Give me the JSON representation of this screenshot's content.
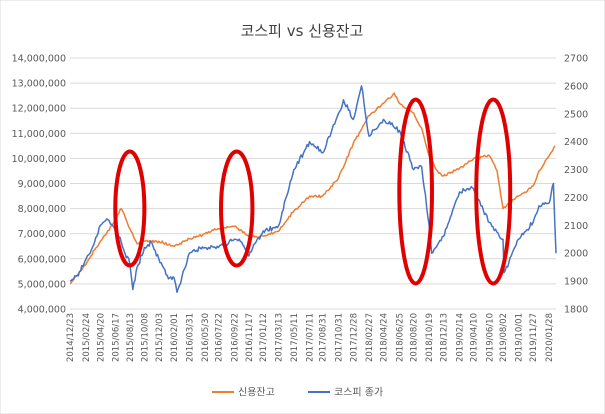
{
  "chart_data": {
    "type": "line",
    "title": "코스피 vs 신용잔고",
    "grid": true,
    "legend_position": "bottom",
    "colors": {
      "credit": "#ED7D31",
      "kospi": "#4472C4",
      "highlight": "#E00000",
      "grid": "#D9D9D9"
    },
    "y_left": {
      "range": [
        4000000,
        14000000
      ],
      "ticks": [
        "4,000,000",
        "5,000,000",
        "6,000,000",
        "7,000,000",
        "8,000,000",
        "9,000,000",
        "10,000,000",
        "11,000,000",
        "12,000,000",
        "13,000,000",
        "14,000,000"
      ]
    },
    "y_right": {
      "range": [
        1800,
        2700
      ],
      "ticks": [
        "1800",
        "1900",
        "2000",
        "2100",
        "2200",
        "2300",
        "2400",
        "2500",
        "2600",
        "2700"
      ]
    },
    "x_tick_labels": [
      "2014/12/23",
      "2015/02/24",
      "2015/04/20",
      "2015/06/17",
      "2015/08/13",
      "2015/10/08",
      "2015/12/03",
      "2016/02/01",
      "2016/03/31",
      "2016/05/30",
      "2016/07/22",
      "2016/09/22",
      "2016/11/17",
      "2017/01/12",
      "2017/03/13",
      "2017/05/11",
      "2017/07/11",
      "2017/08/31",
      "2017/10/31",
      "2017/12/28",
      "2018/02/27",
      "2018/04/24",
      "2018/06/25",
      "2018/08/20",
      "2018/10/19",
      "2018/12/13",
      "2019/02/14",
      "2019/04/10",
      "2019/06/10",
      "2019/08/02",
      "2019/10/01",
      "2019/11/27",
      "2020/01/28"
    ],
    "series": [
      {
        "name": "신용잔고",
        "axis": "left",
        "x": [
          "2014/12/23",
          "2015/02/24",
          "2015/04/20",
          "2015/06/17",
          "2015/07/10",
          "2015/08/13",
          "2015/09/10",
          "2015/10/08",
          "2015/12/03",
          "2016/02/01",
          "2016/03/31",
          "2016/05/30",
          "2016/07/22",
          "2016/09/22",
          "2016/11/17",
          "2017/01/12",
          "2017/03/13",
          "2017/05/11",
          "2017/07/11",
          "2017/08/31",
          "2017/10/31",
          "2017/12/28",
          "2018/02/27",
          "2018/04/24",
          "2018/06/05",
          "2018/06/25",
          "2018/08/20",
          "2018/09/20",
          "2018/10/19",
          "2018/11/20",
          "2018/12/13",
          "2019/02/14",
          "2019/04/10",
          "2019/06/10",
          "2019/07/10",
          "2019/08/02",
          "2019/10/01",
          "2019/11/27",
          "2019/12/20",
          "2020/01/28",
          "2020/02/20"
        ],
        "values": [
          5000000,
          5800000,
          6700000,
          7500000,
          8000000,
          7200000,
          6600000,
          6700000,
          6700000,
          6500000,
          6800000,
          7000000,
          7200000,
          7300000,
          6900000,
          6900000,
          7100000,
          7900000,
          8500000,
          8500000,
          9200000,
          10600000,
          11700000,
          12200000,
          12600000,
          12200000,
          11800000,
          11200000,
          10100000,
          9500000,
          9300000,
          9600000,
          10000000,
          10100000,
          9500000,
          8000000,
          8500000,
          8900000,
          9500000,
          10100000,
          10500000
        ]
      },
      {
        "name": "코스피 종가",
        "axis": "right",
        "x": [
          "2014/12/23",
          "2015/01/20",
          "2015/02/24",
          "2015/03/20",
          "2015/04/20",
          "2015/05/20",
          "2015/06/17",
          "2015/07/10",
          "2015/08/13",
          "2015/08/24",
          "2015/09/10",
          "2015/10/08",
          "2015/11/05",
          "2015/12/03",
          "2016/01/05",
          "2016/02/01",
          "2016/02/12",
          "2016/03/31",
          "2016/05/30",
          "2016/07/22",
          "2016/09/22",
          "2016/10/20",
          "2016/11/17",
          "2016/12/15",
          "2017/01/12",
          "2017/03/13",
          "2017/05/11",
          "2017/07/11",
          "2017/08/31",
          "2017/10/31",
          "2017/11/20",
          "2017/12/28",
          "2018/01/29",
          "2018/02/27",
          "2018/04/24",
          "2018/06/25",
          "2018/08/20",
          "2018/09/20",
          "2018/10/19",
          "2018/10/29",
          "2018/12/13",
          "2019/02/14",
          "2019/04/10",
          "2019/06/10",
          "2019/08/02",
          "2019/08/06",
          "2019/10/01",
          "2019/11/27",
          "2019/12/20",
          "2020/01/28",
          "2020/02/14",
          "2020/02/24"
        ],
        "values": [
          1900,
          1920,
          1980,
          2020,
          2100,
          2120,
          2080,
          2040,
          1960,
          1870,
          1950,
          2020,
          2040,
          1980,
          1920,
          1910,
          1860,
          2000,
          2020,
          2020,
          2050,
          2040,
          1990,
          2040,
          2080,
          2100,
          2300,
          2400,
          2360,
          2500,
          2550,
          2480,
          2600,
          2420,
          2480,
          2440,
          2300,
          2310,
          2100,
          2000,
          2060,
          2220,
          2230,
          2110,
          2050,
          1930,
          2050,
          2110,
          2170,
          2180,
          2250,
          2000
        ]
      }
    ],
    "legend": [
      "신용잔고",
      "코스피 종가"
    ]
  }
}
